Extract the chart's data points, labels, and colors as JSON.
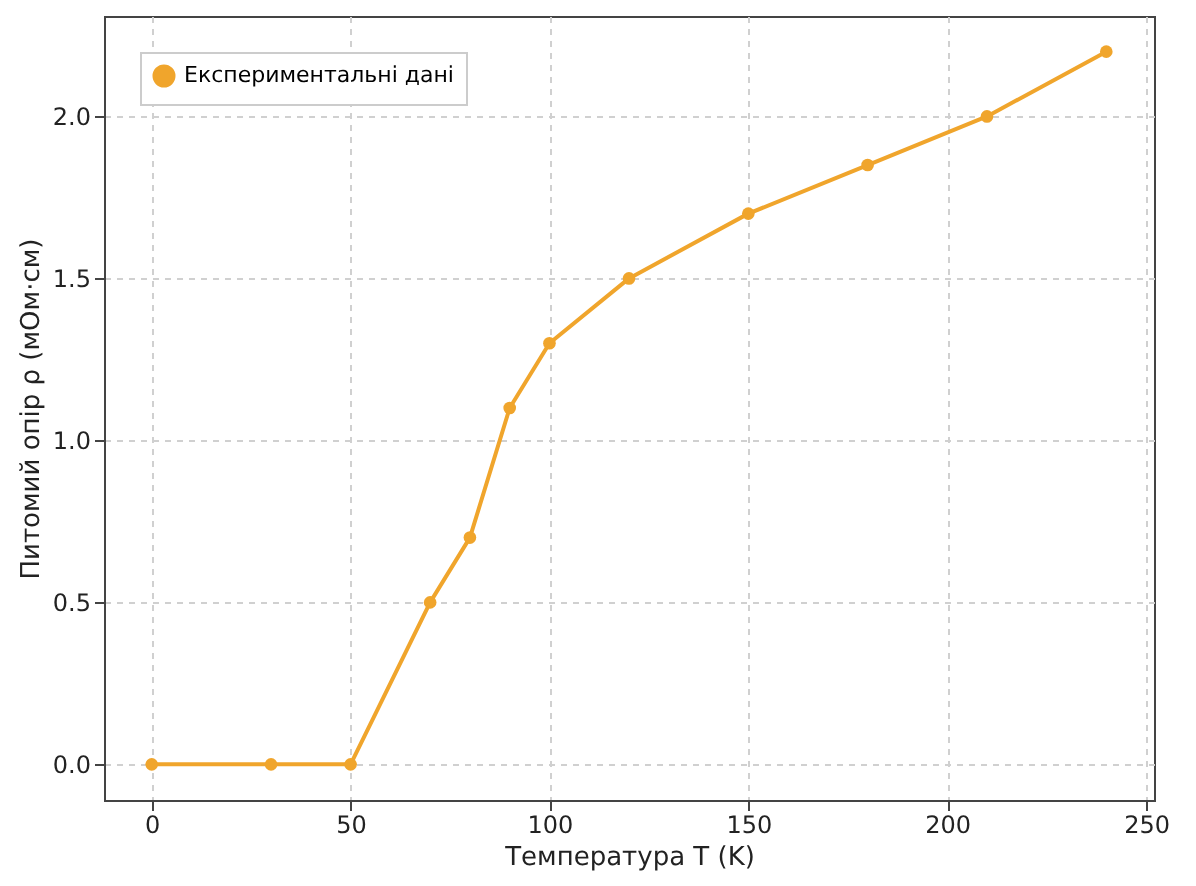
{
  "chart_data": {
    "type": "line",
    "xlabel": "Температура T (K)",
    "ylabel": "Питомий опір ρ (мОм·см)",
    "x": [
      0,
      30,
      50,
      70,
      80,
      90,
      100,
      120,
      150,
      180,
      210,
      240
    ],
    "series": [
      {
        "name": "Експериментальні дані",
        "color": "#f0a52c",
        "values": [
          0,
          0,
          0,
          0.5,
          0.7,
          1.1,
          1.3,
          1.5,
          1.7,
          1.85,
          2.0,
          2.2
        ]
      }
    ],
    "xlim": [
      -12,
      252
    ],
    "xticks": [
      0,
      50,
      100,
      150,
      200,
      250
    ],
    "ylim": [
      -0.11,
      2.31
    ],
    "yticks": [
      {
        "value": 0,
        "label": "0.0"
      },
      0.5,
      {
        "value": 1,
        "label": "1.0"
      },
      1.5,
      {
        "value": 2,
        "label": "2.0"
      }
    ],
    "grid": true,
    "legend": "top left",
    "marker": "circle",
    "line_style": "solid"
  }
}
